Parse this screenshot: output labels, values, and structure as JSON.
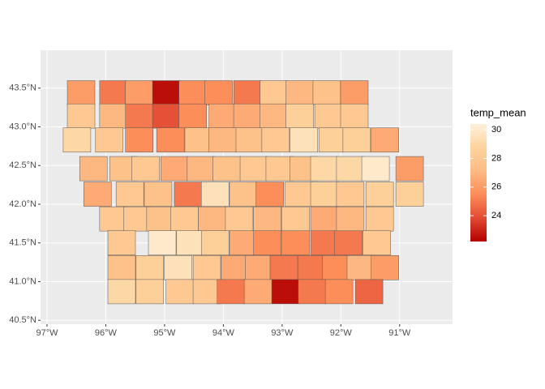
{
  "chart_data": {
    "type": "choropleth",
    "x": [
      -96.42,
      -95.87,
      -95.43,
      -94.97,
      -94.52,
      -94.08,
      -93.59,
      -93.14,
      -92.7,
      -92.24,
      -91.77,
      -96.42,
      -95.87,
      -95.43,
      -94.97,
      -94.52,
      -94.01,
      -93.59,
      -93.14,
      -92.7,
      -92.21,
      -91.77,
      -96.49,
      -95.94,
      -95.43,
      -94.9,
      -94.42,
      -94.01,
      -93.55,
      -93.11,
      -92.63,
      -92.14,
      -91.73,
      -91.25,
      -96.21,
      -95.7,
      -95.32,
      -94.83,
      -94.38,
      -93.94,
      -93.48,
      -93.04,
      -92.63,
      -92.28,
      -91.84,
      -91.41,
      -90.83,
      -96.14,
      -95.59,
      -95.11,
      -94.6,
      -94.14,
      -93.66,
      -93.21,
      -92.72,
      -92.28,
      -91.84,
      -91.34,
      -90.83,
      -95.87,
      -95.46,
      -95.07,
      -94.66,
      -94.19,
      -93.73,
      -93.25,
      -92.77,
      -92.28,
      -91.84,
      -91.34,
      -95.73,
      -95.04,
      -94.56,
      -94.14,
      -93.66,
      -93.25,
      -92.77,
      -92.28,
      -91.87,
      -91.39,
      -95.73,
      -95.25,
      -94.77,
      -94.28,
      -93.8,
      -93.39,
      -92.97,
      -92.49,
      -92.08,
      -91.66,
      -91.25,
      -95.73,
      -95.25,
      -94.74,
      -94.28,
      -93.87,
      -93.41,
      -92.94,
      -92.49,
      -92.03,
      -91.52
    ],
    "y": [
      43.44,
      43.44,
      43.44,
      43.44,
      43.44,
      43.44,
      43.44,
      43.44,
      43.44,
      43.44,
      43.44,
      43.14,
      43.14,
      43.14,
      43.14,
      43.14,
      43.14,
      43.14,
      43.14,
      43.14,
      43.14,
      43.14,
      42.83,
      42.83,
      42.83,
      42.83,
      42.83,
      42.83,
      42.83,
      42.83,
      42.83,
      42.83,
      42.83,
      42.83,
      42.46,
      42.46,
      42.46,
      42.46,
      42.46,
      42.46,
      42.46,
      42.46,
      42.46,
      42.46,
      42.46,
      42.46,
      42.46,
      42.13,
      42.13,
      42.13,
      42.13,
      42.13,
      42.13,
      42.13,
      42.13,
      42.13,
      42.13,
      42.13,
      42.13,
      41.81,
      41.81,
      41.81,
      41.81,
      41.81,
      41.81,
      41.81,
      41.81,
      41.81,
      41.81,
      41.81,
      41.5,
      41.5,
      41.5,
      41.5,
      41.5,
      41.5,
      41.5,
      41.5,
      41.5,
      41.5,
      41.18,
      41.18,
      41.18,
      41.18,
      41.18,
      41.18,
      41.18,
      41.18,
      41.18,
      41.18,
      41.18,
      40.87,
      40.87,
      40.87,
      40.87,
      40.87,
      40.87,
      40.87,
      40.87,
      40.87,
      40.87
    ],
    "values": [
      26,
      25,
      26,
      22.5,
      25.5,
      25.5,
      25,
      28,
      27,
      27.5,
      26,
      28,
      27,
      25,
      24,
      25.5,
      26.5,
      26.5,
      27,
      28.5,
      28,
      28,
      29,
      28,
      25.5,
      25.5,
      27.5,
      27,
      27.5,
      28,
      29.5,
      28.5,
      28.5,
      26.5,
      27,
      27.5,
      28,
      26.5,
      27,
      27.5,
      28,
      28,
      27.5,
      29,
      29,
      30,
      26,
      26.5,
      28,
      27.5,
      25,
      29.5,
      27.5,
      25.5,
      28,
      28.5,
      28,
      28.5,
      28.5,
      28,
      28,
      27.5,
      28,
      27,
      28,
      27,
      28,
      26.5,
      27,
      28,
      28,
      30,
      29.5,
      28.5,
      26.5,
      25.5,
      25.5,
      25,
      25,
      28,
      27.5,
      28.5,
      29.5,
      28,
      26.5,
      26.5,
      25,
      25,
      25.5,
      27,
      26,
      29,
      28.5,
      28,
      28,
      25,
      26.5,
      22.5,
      25,
      25.5,
      24.5
    ],
    "xlim": [
      -97.11,
      -90.1
    ],
    "ylim": [
      40.45,
      43.99
    ],
    "xticks": [
      {
        "value": -97,
        "label": "97°W"
      },
      {
        "value": -96,
        "label": "96°W"
      },
      {
        "value": -95,
        "label": "95°W"
      },
      {
        "value": -94,
        "label": "94°W"
      },
      {
        "value": -93,
        "label": "93°W"
      },
      {
        "value": -92,
        "label": "92°W"
      },
      {
        "value": -91,
        "label": "91°W"
      }
    ],
    "yticks": [
      {
        "value": 40.5,
        "label": "40.5°N"
      },
      {
        "value": 41.0,
        "label": "41.0°N"
      },
      {
        "value": 41.5,
        "label": "41.5°N"
      },
      {
        "value": 42.0,
        "label": "42.0°N"
      },
      {
        "value": 42.5,
        "label": "42.5°N"
      },
      {
        "value": 43.0,
        "label": "43.0°N"
      },
      {
        "value": 43.5,
        "label": "43.5°N"
      }
    ],
    "grid": true,
    "legend_title": "temp_mean",
    "color_lim": [
      22.2,
      30.4
    ],
    "color_ticks": [
      24,
      26,
      28,
      30
    ],
    "palette": [
      "#B30000",
      "#E34A33",
      "#FC8D59",
      "#FDBB84",
      "#FDD49E",
      "#FEF0D9"
    ]
  }
}
